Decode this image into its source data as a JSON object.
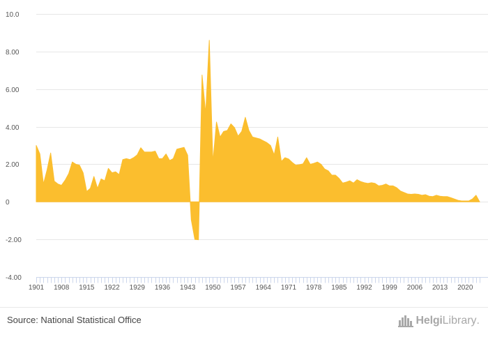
{
  "chart_data": {
    "type": "area",
    "title": "",
    "xlabel": "",
    "ylabel": "",
    "ylim": [
      -4,
      10
    ],
    "y_ticks": [
      "10.0",
      "8.00",
      "6.00",
      "4.00",
      "2.00",
      "0",
      "-2.00",
      "-4.00"
    ],
    "y_tick_values": [
      10,
      8,
      6,
      4,
      2,
      0,
      -2,
      -4
    ],
    "x_tick_labels": [
      "1901",
      "1908",
      "1915",
      "1922",
      "1929",
      "1936",
      "1943",
      "1950",
      "1957",
      "1964",
      "1971",
      "1978",
      "1985",
      "1992",
      "1999",
      "2006",
      "2013",
      "2020"
    ],
    "x_tick_years": [
      1901,
      1908,
      1915,
      1922,
      1929,
      1936,
      1943,
      1950,
      1957,
      1964,
      1971,
      1978,
      1985,
      1992,
      1999,
      2006,
      2013,
      2020
    ],
    "x_range": [
      1901,
      2024
    ],
    "color": "#fbbe2e",
    "grid": true,
    "legend": "none",
    "x": [
      1901,
      1902,
      1903,
      1904,
      1905,
      1906,
      1907,
      1908,
      1909,
      1910,
      1911,
      1912,
      1913,
      1914,
      1915,
      1916,
      1917,
      1918,
      1919,
      1920,
      1921,
      1922,
      1923,
      1924,
      1925,
      1926,
      1927,
      1928,
      1929,
      1930,
      1931,
      1932,
      1933,
      1934,
      1935,
      1936,
      1937,
      1938,
      1939,
      1940,
      1941,
      1942,
      1943,
      1944,
      1945,
      1946,
      1947,
      1948,
      1949,
      1950,
      1951,
      1952,
      1953,
      1954,
      1955,
      1956,
      1957,
      1958,
      1959,
      1960,
      1961,
      1962,
      1963,
      1964,
      1965,
      1966,
      1967,
      1968,
      1969,
      1970,
      1971,
      1972,
      1973,
      1974,
      1975,
      1976,
      1977,
      1978,
      1979,
      1980,
      1981,
      1982,
      1983,
      1984,
      1985,
      1986,
      1987,
      1988,
      1989,
      1990,
      1991,
      1992,
      1993,
      1994,
      1995,
      1996,
      1997,
      1998,
      1999,
      2000,
      2001,
      2002,
      2003,
      2004,
      2005,
      2006,
      2007,
      2008,
      2009,
      2010,
      2011,
      2012,
      2013,
      2014,
      2015,
      2016,
      2017,
      2018,
      2019,
      2020,
      2021,
      2022,
      2023,
      2024
    ],
    "values": [
      3.0,
      2.55,
      0.95,
      1.7,
      2.6,
      1.1,
      0.95,
      0.88,
      1.15,
      1.5,
      2.12,
      2.0,
      1.95,
      1.55,
      0.55,
      0.72,
      1.35,
      0.72,
      1.22,
      1.12,
      1.78,
      1.55,
      1.6,
      1.45,
      2.25,
      2.3,
      2.25,
      2.35,
      2.5,
      2.88,
      2.65,
      2.65,
      2.65,
      2.7,
      2.3,
      2.3,
      2.55,
      2.2,
      2.3,
      2.8,
      2.85,
      2.9,
      2.48,
      -0.95,
      -2.0,
      -2.02,
      6.75,
      4.7,
      8.6,
      2.1,
      4.25,
      3.45,
      3.75,
      3.8,
      4.15,
      3.95,
      3.5,
      3.75,
      4.5,
      3.8,
      3.45,
      3.4,
      3.35,
      3.25,
      3.15,
      3.0,
      2.5,
      3.45,
      2.15,
      2.35,
      2.28,
      2.1,
      1.95,
      1.98,
      2.02,
      2.35,
      2.0,
      2.05,
      2.12,
      2.0,
      1.75,
      1.65,
      1.42,
      1.42,
      1.25,
      1.0,
      1.05,
      1.12,
      1.0,
      1.18,
      1.08,
      1.02,
      0.98,
      1.02,
      0.98,
      0.85,
      0.88,
      0.95,
      0.85,
      0.85,
      0.75,
      0.58,
      0.5,
      0.42,
      0.4,
      0.42,
      0.4,
      0.35,
      0.38,
      0.3,
      0.28,
      0.35,
      0.3,
      0.28,
      0.28,
      0.22,
      0.15,
      0.08,
      0.05,
      0.05,
      0.05,
      0.15,
      0.35,
      0.0
    ]
  },
  "footer": {
    "source": "Source: National Statistical Office",
    "brand_name": "Helgi",
    "brand_sub": "Library",
    "brand_dot": "."
  }
}
